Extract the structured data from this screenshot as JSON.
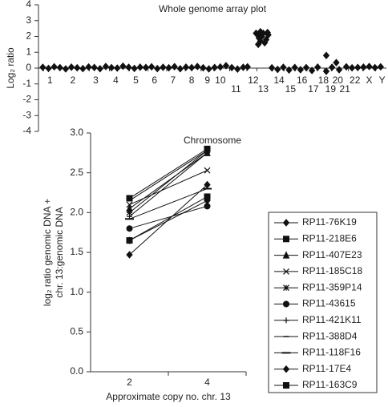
{
  "chart_data": [
    {
      "type": "scatter",
      "title": "Whole genome array plot",
      "xlabel": "Chromosome",
      "ylabel": "Log₂ ratio",
      "color": "#111111",
      "xlim": [
        0,
        24.3
      ],
      "ylim": [
        -4,
        4
      ],
      "yticks": [
        -4,
        -3,
        -2,
        -1,
        0,
        1,
        2,
        3,
        4
      ],
      "xticks": [
        {
          "value": 0.8,
          "label": "1"
        },
        {
          "value": 2.4,
          "label": "2"
        },
        {
          "value": 4.0,
          "label": "3"
        },
        {
          "value": 5.4,
          "label": "4"
        },
        {
          "value": 6.8,
          "label": "5"
        },
        {
          "value": 8.1,
          "label": "6"
        },
        {
          "value": 9.4,
          "label": "7"
        },
        {
          "value": 10.7,
          "label": "8"
        },
        {
          "value": 11.8,
          "label": "9"
        },
        {
          "value": 12.7,
          "label": "10"
        },
        {
          "value": 13.8,
          "label": "11"
        },
        {
          "value": 15.0,
          "label": "12"
        },
        {
          "value": 15.7,
          "label": "13"
        },
        {
          "value": 16.8,
          "label": "14"
        },
        {
          "value": 17.6,
          "label": "15"
        },
        {
          "value": 18.4,
          "label": "16"
        },
        {
          "value": 19.2,
          "label": "17"
        },
        {
          "value": 19.9,
          "label": "18"
        },
        {
          "value": 20.4,
          "label": "19"
        },
        {
          "value": 20.9,
          "label": "20"
        },
        {
          "value": 21.4,
          "label": "21"
        },
        {
          "value": 22.1,
          "label": "22"
        },
        {
          "value": 23.1,
          "label": "X"
        },
        {
          "value": 24.0,
          "label": "Y"
        }
      ],
      "x": [
        0.3,
        0.7,
        1.1,
        1.5,
        1.9,
        2.3,
        2.7,
        3.1,
        3.5,
        3.9,
        4.3,
        4.7,
        5.1,
        5.5,
        5.9,
        6.3,
        6.7,
        7.1,
        7.5,
        7.9,
        8.3,
        8.7,
        9.1,
        9.5,
        9.9,
        10.3,
        10.7,
        11.1,
        11.5,
        11.9,
        12.3,
        12.7,
        13.1,
        13.5,
        13.9,
        14.3,
        14.6,
        16.3,
        16.7,
        17.1,
        17.5,
        17.9,
        18.3,
        18.7,
        19.1,
        19.5,
        20.1,
        20.5,
        21.0,
        21.5,
        21.9,
        22.3,
        22.7,
        23.1,
        23.5,
        23.9,
        15.2,
        15.3,
        15.4,
        15.5,
        15.5,
        15.6,
        15.7,
        15.8,
        15.9,
        16.0,
        15.35,
        16.05,
        20.1,
        20.8
      ],
      "y": [
        0.05,
        -0.02,
        0.08,
        0.03,
        -0.05,
        0.06,
        0.02,
        -0.03,
        0.07,
        0.04,
        -0.04,
        0.1,
        0.03,
        0.0,
        0.12,
        0.05,
        -0.02,
        0.06,
        0.04,
        0.08,
        -0.03,
        0.05,
        0.02,
        0.09,
        -0.04,
        0.06,
        0.03,
        0.1,
        0.02,
        -0.05,
        0.04,
        0.07,
        0.15,
        0.03,
        -0.06,
        0.05,
        0.08,
        0.02,
        -0.08,
        0.05,
        -0.12,
        0.04,
        -0.1,
        0.03,
        -0.15,
        0.06,
        -0.2,
        0.05,
        -0.1,
        0.08,
        0.02,
        0.04,
        0.06,
        0.1,
        0.03,
        0.08,
        2.2,
        2.1,
        1.9,
        2.3,
        1.7,
        2.0,
        2.2,
        1.6,
        1.8,
        2.25,
        1.5,
        2.1,
        0.8,
        0.35
      ]
    },
    {
      "type": "line",
      "xlabel": "Approximate copy no. chr. 13",
      "ylabel": [
        "log₂ ratio genomic DNA +",
        "chr. 13:genomic DNA"
      ],
      "xlim": [
        1,
        5
      ],
      "xticks": [
        2,
        4
      ],
      "ylim": [
        0,
        3
      ],
      "yticks": [
        {
          "value": 0,
          "label": "0.0"
        },
        {
          "value": 0.5,
          "label": "0.5"
        },
        {
          "value": 1,
          "label": "1.0"
        },
        {
          "value": 1.5,
          "label": "1.5"
        },
        {
          "value": 2,
          "label": "2.0"
        },
        {
          "value": 2.5,
          "label": "2.5"
        },
        {
          "value": 3,
          "label": "3.0"
        }
      ],
      "x": [
        2,
        4
      ],
      "series": [
        {
          "name": "RP11-76K19",
          "marker": "diamond",
          "color": "#111111",
          "values": [
            1.47,
            2.35
          ]
        },
        {
          "name": "RP11-218E6",
          "marker": "square",
          "color": "#111111",
          "values": [
            2.18,
            2.8
          ]
        },
        {
          "name": "RP11-407E23",
          "marker": "triangle",
          "color": "#111111",
          "values": [
            2.05,
            2.75
          ]
        },
        {
          "name": "RP11-185C18",
          "marker": "x",
          "color": "#111111",
          "values": [
            2.1,
            2.53
          ]
        },
        {
          "name": "RP11-359P14",
          "marker": "star",
          "color": "#111111",
          "values": [
            2.0,
            2.78
          ]
        },
        {
          "name": "RP11-43615",
          "marker": "circle",
          "color": "#111111",
          "values": [
            1.8,
            2.08
          ]
        },
        {
          "name": "RP11-421K11",
          "marker": "plus",
          "color": "#111111",
          "values": [
            1.95,
            2.75
          ]
        },
        {
          "name": "RP11-388D4",
          "marker": "dash",
          "color": "#111111",
          "values": [
            2.15,
            2.78
          ]
        },
        {
          "name": "RP11-118F16",
          "marker": "longdash",
          "color": "#111111",
          "values": [
            1.92,
            2.3
          ]
        },
        {
          "name": "RP11-17E4",
          "marker": "diamond",
          "color": "#111111",
          "values": [
            1.65,
            2.15
          ]
        },
        {
          "name": "RP11-163C9",
          "marker": "square",
          "color": "#111111",
          "values": [
            1.65,
            2.2
          ]
        }
      ]
    }
  ]
}
